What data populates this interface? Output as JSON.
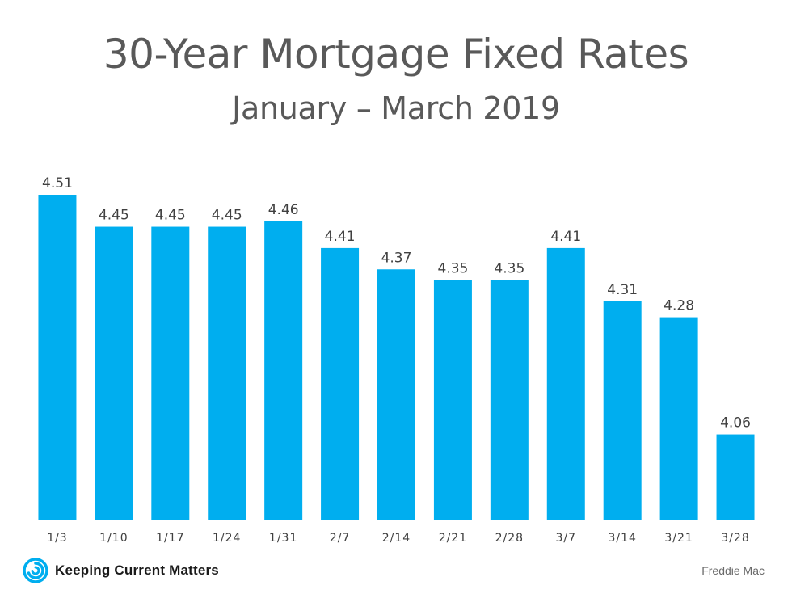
{
  "chart_data": {
    "type": "bar",
    "title": "30-Year Mortgage Fixed Rates",
    "subtitle": "January – March 2019",
    "categories": [
      "1/3",
      "1/10",
      "1/17",
      "1/24",
      "1/31",
      "2/7",
      "2/14",
      "2/21",
      "2/28",
      "3/7",
      "3/14",
      "3/21",
      "3/28"
    ],
    "values": [
      4.51,
      4.45,
      4.45,
      4.45,
      4.46,
      4.41,
      4.37,
      4.35,
      4.35,
      4.41,
      4.31,
      4.28,
      4.06
    ],
    "data_labels": [
      "4.51",
      "4.45",
      "4.45",
      "4.45",
      "4.46",
      "4.41",
      "4.37",
      "4.35",
      "4.35",
      "4.41",
      "4.31",
      "4.28",
      "4.06"
    ],
    "ylim": [
      3.9,
      4.51
    ],
    "bar_color": "#00AEEF",
    "grid": false,
    "legend": "none"
  },
  "footer": {
    "brand": "Keeping Current Matters",
    "brand_icon": "swirl-logo-icon",
    "brand_color": "#00AEEF",
    "source": "Freddie Mac"
  }
}
